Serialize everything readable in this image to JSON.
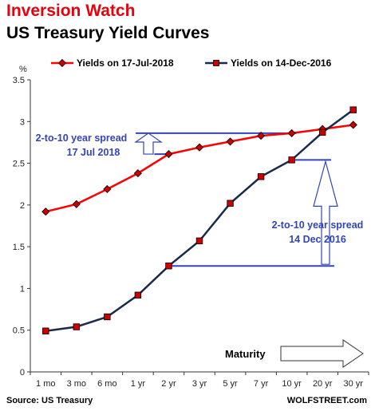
{
  "header": {
    "title": "Inversion Watch",
    "subtitle": "US Treasury Yield Curves"
  },
  "footer": {
    "source": "Source: US Treasury",
    "credit": "WOLFSTREET.com"
  },
  "colors": {
    "series_2018": "#ff0000",
    "series_2016": "#1a2a4a",
    "marker": "#cc0000",
    "annotation": "#3344bb"
  },
  "chart_data": {
    "type": "line",
    "ylabel": "%",
    "ylim": [
      0,
      3.5
    ],
    "yticks": [
      "0",
      "0.5",
      "1",
      "1.5",
      "2",
      "2.5",
      "3",
      "3.5"
    ],
    "categories": [
      "1 mo",
      "3 mo",
      "6 mo",
      "1 yr",
      "2 yr",
      "3 yr",
      "5 yr",
      "7 yr",
      "10 yr",
      "20 yr",
      "30 yr"
    ],
    "grid": false,
    "legend_position": "top",
    "series": [
      {
        "name": "Yields on 17-Jul-2018",
        "values": [
          1.92,
          2.01,
          2.19,
          2.38,
          2.61,
          2.69,
          2.76,
          2.83,
          2.86,
          2.91,
          2.96
        ]
      },
      {
        "name": "Yields on 14-Dec-2016",
        "values": [
          0.49,
          0.54,
          0.66,
          0.92,
          1.27,
          1.57,
          2.02,
          2.34,
          2.54,
          2.87,
          3.14
        ]
      }
    ],
    "annotations": {
      "spread_2018_line1": "2-to-10 year spread",
      "spread_2018_line2": "17 Jul 2018",
      "spread_2016_line1": "2-to-10 year spread",
      "spread_2016_line2": "14 Dec 2016",
      "maturity": "Maturity"
    }
  }
}
